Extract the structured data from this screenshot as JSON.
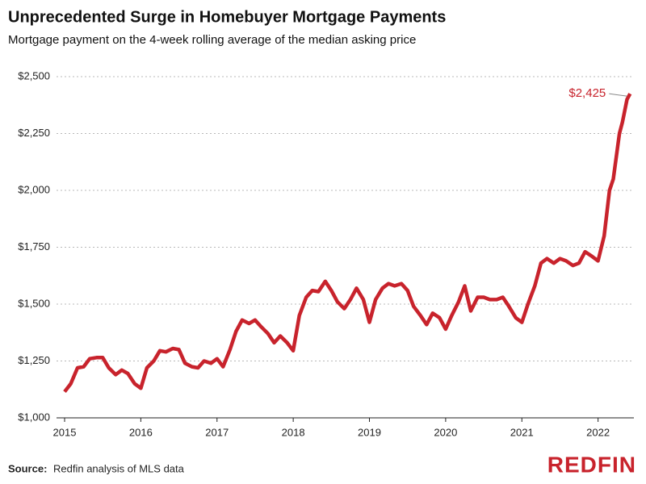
{
  "chart_data": {
    "type": "line",
    "title": "Unprecedented Surge in Homebuyer Mortgage Payments",
    "subtitle": "Mortgage payment on the 4-week rolling average of the median asking price",
    "x": [
      2015.0,
      2015.08,
      2015.17,
      2015.25,
      2015.33,
      2015.42,
      2015.5,
      2015.58,
      2015.67,
      2015.75,
      2015.83,
      2015.92,
      2016.0,
      2016.08,
      2016.17,
      2016.25,
      2016.33,
      2016.42,
      2016.5,
      2016.58,
      2016.67,
      2016.75,
      2016.83,
      2016.92,
      2017.0,
      2017.08,
      2017.17,
      2017.25,
      2017.33,
      2017.42,
      2017.5,
      2017.58,
      2017.67,
      2017.75,
      2017.83,
      2017.92,
      2018.0,
      2018.08,
      2018.17,
      2018.25,
      2018.33,
      2018.42,
      2018.5,
      2018.58,
      2018.67,
      2018.75,
      2018.83,
      2018.92,
      2019.0,
      2019.08,
      2019.17,
      2019.25,
      2019.33,
      2019.42,
      2019.5,
      2019.58,
      2019.67,
      2019.75,
      2019.83,
      2019.92,
      2020.0,
      2020.08,
      2020.17,
      2020.25,
      2020.33,
      2020.42,
      2020.5,
      2020.58,
      2020.67,
      2020.75,
      2020.83,
      2020.92,
      2021.0,
      2021.08,
      2021.17,
      2021.25,
      2021.33,
      2021.42,
      2021.5,
      2021.58,
      2021.67,
      2021.75,
      2021.83,
      2021.92,
      2022.0,
      2022.08,
      2022.15,
      2022.2,
      2022.28,
      2022.32,
      2022.38,
      2022.42
    ],
    "series": [
      {
        "color": "#c8232c",
        "values": [
          1115,
          1150,
          1220,
          1225,
          1260,
          1265,
          1265,
          1220,
          1190,
          1210,
          1195,
          1150,
          1130,
          1220,
          1250,
          1295,
          1290,
          1305,
          1300,
          1240,
          1225,
          1220,
          1250,
          1240,
          1260,
          1225,
          1300,
          1380,
          1430,
          1415,
          1430,
          1400,
          1370,
          1330,
          1360,
          1330,
          1295,
          1450,
          1530,
          1560,
          1555,
          1600,
          1560,
          1510,
          1480,
          1520,
          1570,
          1520,
          1420,
          1520,
          1570,
          1590,
          1580,
          1590,
          1560,
          1490,
          1450,
          1410,
          1460,
          1440,
          1390,
          1450,
          1510,
          1580,
          1470,
          1530,
          1530,
          1520,
          1520,
          1530,
          1490,
          1440,
          1420,
          1500,
          1580,
          1680,
          1700,
          1680,
          1700,
          1690,
          1670,
          1680,
          1730,
          1710,
          1690,
          1800,
          2000,
          2050,
          2250,
          2300,
          2400,
          2425
        ],
        "value_labels": [
          null,
          null,
          null,
          null,
          null,
          null,
          null,
          null,
          null,
          null,
          null,
          null,
          null,
          null,
          null,
          null,
          null,
          null,
          null,
          null,
          null,
          null,
          null,
          null,
          null,
          null,
          null,
          null,
          null,
          null,
          null,
          null,
          null,
          null,
          null,
          null,
          null,
          null,
          null,
          null,
          null,
          null,
          null,
          null,
          null,
          null,
          null,
          null,
          null,
          null,
          null,
          null,
          null,
          null,
          null,
          null,
          null,
          null,
          null,
          null,
          null,
          null,
          null,
          null,
          null,
          null,
          null,
          null,
          null,
          null,
          null,
          null,
          null,
          null,
          null,
          null,
          null,
          null,
          null,
          null,
          null,
          null,
          null,
          null,
          null,
          null,
          null,
          null,
          null,
          null,
          null,
          "$2,425"
        ]
      }
    ],
    "xlim": [
      2015,
      2022.47
    ],
    "xticks": [
      2015,
      2016,
      2017,
      2018,
      2019,
      2020,
      2021,
      2022
    ],
    "ylim": [
      1000,
      2500
    ],
    "yticks": [
      {
        "value": 1000,
        "label": "$1,000"
      },
      {
        "value": 1250,
        "label": "$1,250"
      },
      {
        "value": 1500,
        "label": "$1,500"
      },
      {
        "value": 1750,
        "label": "$1,750"
      },
      {
        "value": 2000,
        "label": "$2,000"
      },
      {
        "value": 2250,
        "label": "$2,250"
      },
      {
        "value": 2500,
        "label": "$2,500"
      }
    ],
    "grid": true,
    "source_label": "Source:",
    "source": "Redfin analysis of MLS data",
    "brand": "REDFIN"
  }
}
